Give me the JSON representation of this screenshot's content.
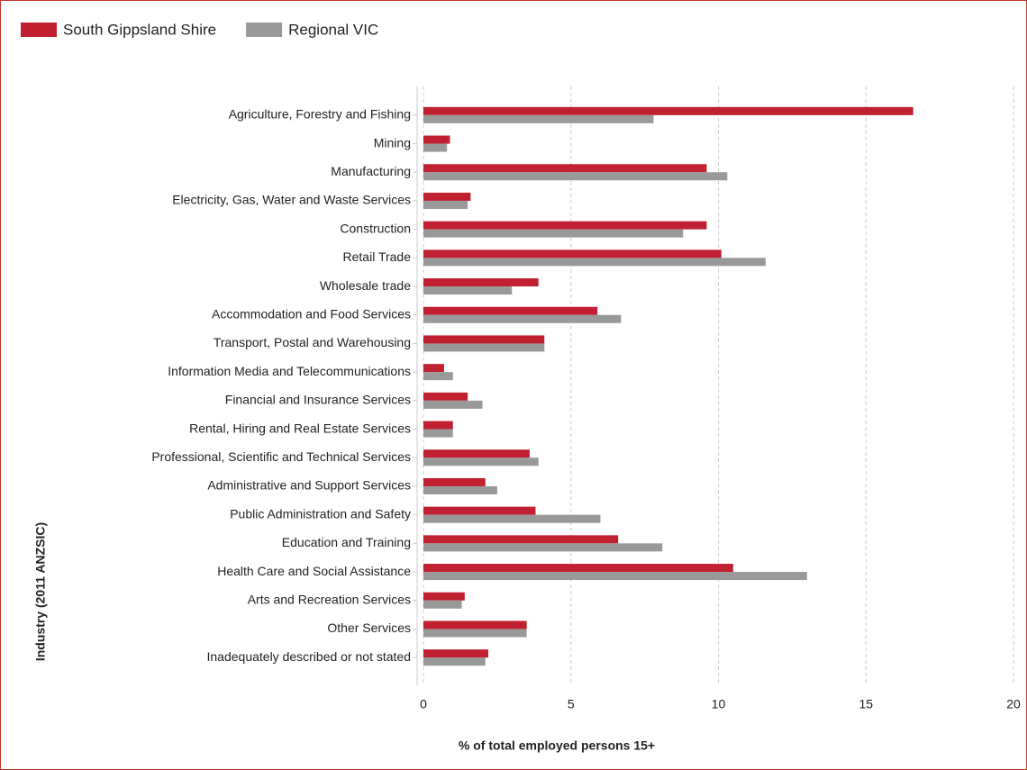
{
  "chart_data": {
    "type": "hbar",
    "categories": [
      "Agriculture, Forestry and Fishing",
      "Mining",
      "Manufacturing",
      "Electricity, Gas, Water and Waste Services",
      "Construction",
      "Retail Trade",
      "Wholesale trade",
      "Accommodation and Food Services",
      "Transport, Postal and Warehousing",
      "Information Media and Telecommunications",
      "Financial and Insurance Services",
      "Rental, Hiring and Real Estate Services",
      "Professional, Scientific and Technical Services",
      "Administrative and Support Services",
      "Public Administration and Safety",
      "Education and Training",
      "Health Care and Social Assistance",
      "Arts and Recreation Services",
      "Other Services",
      "Inadequately described or not stated"
    ],
    "series": [
      {
        "name": "South Gippsland Shire",
        "color": "#c0202f",
        "values": [
          16.6,
          0.9,
          9.6,
          1.6,
          9.6,
          10.1,
          3.9,
          5.9,
          4.1,
          0.7,
          1.5,
          1.0,
          3.6,
          2.1,
          3.8,
          6.6,
          10.5,
          1.4,
          3.5,
          2.2
        ]
      },
      {
        "name": "Regional VIC",
        "color": "#999999",
        "values": [
          7.8,
          0.8,
          10.3,
          1.5,
          8.8,
          11.6,
          3.0,
          6.7,
          4.1,
          1.0,
          2.0,
          1.0,
          3.9,
          2.5,
          6.0,
          8.1,
          13.0,
          1.3,
          3.5,
          2.1
        ]
      }
    ],
    "xlabel": "% of total employed persons 15+",
    "ylabel": "Industry (2011 ANZSIC)",
    "xlim": [
      0,
      20
    ],
    "xticks": [
      0,
      5,
      10,
      15,
      20
    ],
    "grid": true,
    "legend": "top-left"
  }
}
